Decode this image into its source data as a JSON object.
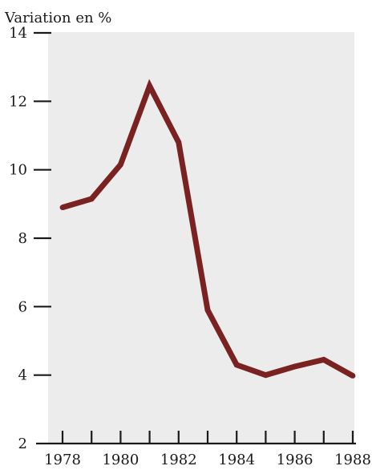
{
  "chart_data": {
    "type": "line",
    "title": "",
    "ylabel": "Variation en %",
    "xlabel": "",
    "x": [
      1978,
      1979,
      1980,
      1981,
      1982,
      1983,
      1984,
      1985,
      1986,
      1987,
      1988
    ],
    "series": [
      {
        "values": [
          8.9,
          9.15,
          10.15,
          12.45,
          10.8,
          5.9,
          4.3,
          4.0,
          4.25,
          4.45,
          3.98
        ]
      }
    ],
    "xlim": [
      1977.8,
      1988.2
    ],
    "ylim": [
      2,
      14
    ],
    "yticks": [
      "14",
      "12",
      "10",
      "8",
      "6",
      "4",
      "2"
    ],
    "xtick_labels": [
      "1978",
      "1980",
      "1982",
      "1984",
      "1986",
      "1988"
    ],
    "x_minor_ticks": [
      1978,
      1979,
      1980,
      1981,
      1982,
      1983,
      1984,
      1985,
      1986,
      1987,
      1988
    ],
    "grid": false,
    "legend": "none",
    "colors": {
      "line": "#7a2222",
      "plot_background": "#ececec",
      "axis": "#1a1a1a"
    }
  }
}
